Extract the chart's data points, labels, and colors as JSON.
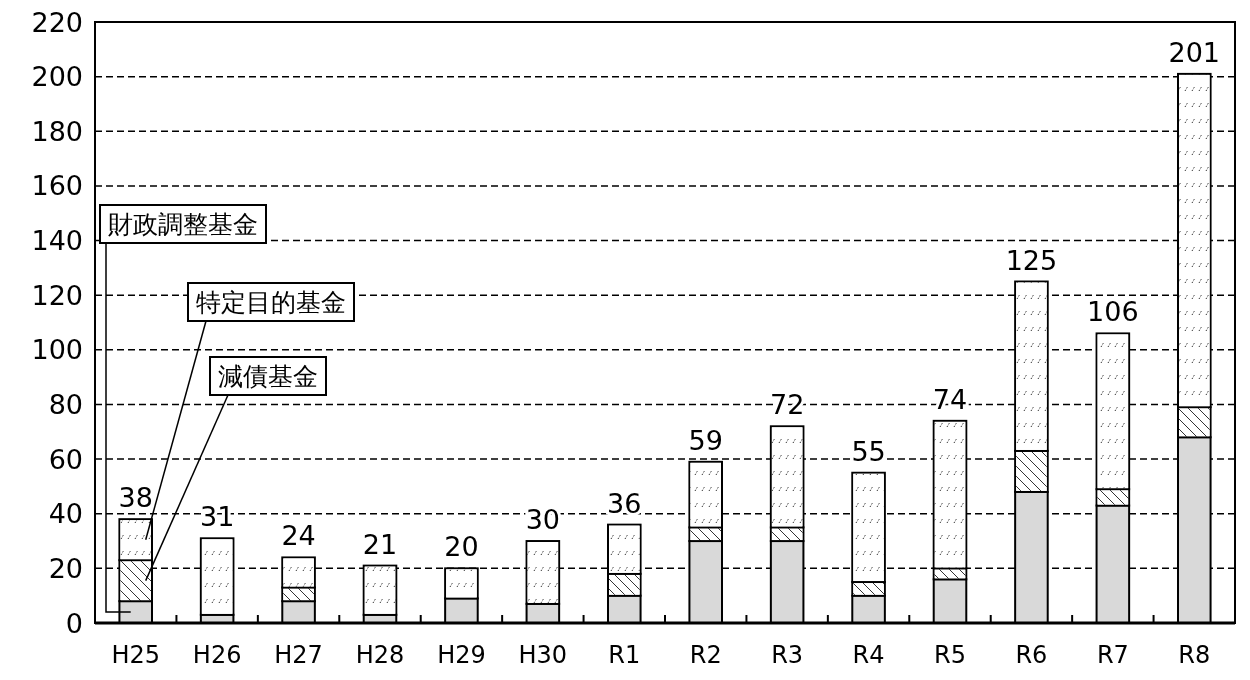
{
  "chart_data": {
    "type": "bar",
    "stacked": true,
    "categories": [
      "H25",
      "H26",
      "H27",
      "H28",
      "H29",
      "H30",
      "R1",
      "R2",
      "R3",
      "R4",
      "R5",
      "R6",
      "R7",
      "R8"
    ],
    "series": [
      {
        "name": "財政調整基金",
        "color": "#d9d9d9",
        "values": [
          8,
          3,
          8,
          3,
          9,
          7,
          10,
          30,
          30,
          10,
          16,
          48,
          43,
          68
        ]
      },
      {
        "name": "減債基金",
        "color": "#ffffff",
        "values": [
          15,
          0,
          5,
          0,
          0,
          0,
          8,
          5,
          5,
          5,
          4,
          15,
          6,
          11
        ]
      },
      {
        "name": "特定目的基金",
        "color": "#ffffff",
        "values": [
          15,
          28,
          11,
          18,
          11,
          23,
          18,
          24,
          37,
          40,
          54,
          62,
          57,
          122
        ]
      }
    ],
    "totals": [
      "38",
      "31",
      "24",
      "21",
      "20",
      "30",
      "36",
      "59",
      "72",
      "55",
      "74",
      "125",
      "106",
      "201"
    ],
    "ylim": [
      0,
      220
    ],
    "yticks": [
      0,
      20,
      40,
      60,
      80,
      100,
      120,
      140,
      160,
      180,
      200,
      220
    ],
    "grid": "y",
    "legend": false
  }
}
